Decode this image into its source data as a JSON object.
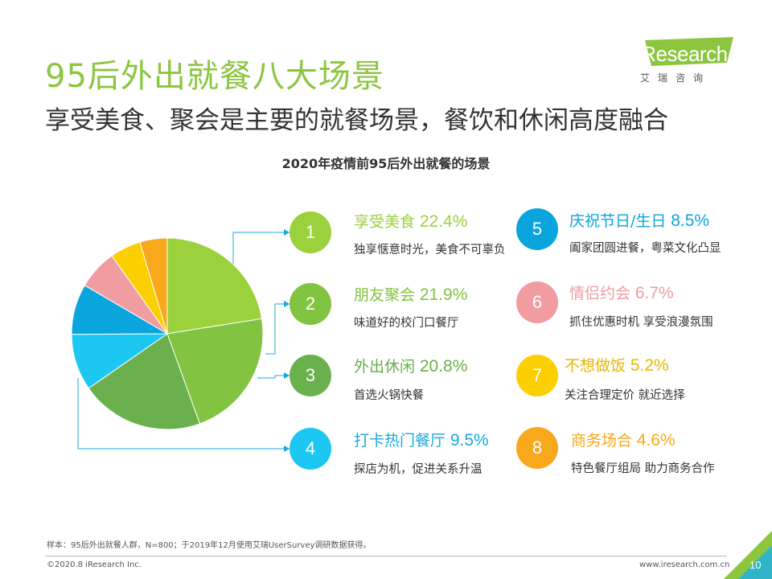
{
  "header": {
    "title": "95后外出就餐八大场景",
    "subtitle": "享受美食、聚会是主要的就餐场景，餐饮和休闲高度融合"
  },
  "logo": {
    "word": "iResearch",
    "cn": "艾瑞咨询"
  },
  "chart_data": {
    "type": "pie",
    "title": "2020年疫情前95后外出就餐的场景",
    "slices": [
      {
        "index": "1",
        "name": "享受美食",
        "value": 22.4,
        "value_label": "22.4%",
        "desc": "独享惬意时光，美食不可辜负",
        "color": "#9bd13c"
      },
      {
        "index": "2",
        "name": "朋友聚会",
        "value": 21.9,
        "value_label": "21.9%",
        "desc": "味道好的校门口餐厅",
        "color": "#82c341"
      },
      {
        "index": "3",
        "name": "外出休闲",
        "value": 20.8,
        "value_label": "20.8%",
        "desc": "首选火锅快餐",
        "color": "#6ab04c"
      },
      {
        "index": "4",
        "name": "打卡热门餐厅",
        "value": 9.5,
        "value_label": "9.5%",
        "desc": "探店为机，促进关系升温",
        "color": "#1cc7f1"
      },
      {
        "index": "5",
        "name": "庆祝节日/生日",
        "value": 8.5,
        "value_label": "8.5%",
        "desc": "阖家团圆进餐，粤菜文化凸显",
        "color": "#0aa5dd"
      },
      {
        "index": "6",
        "name": "情侣约会",
        "value": 6.7,
        "value_label": "6.7%",
        "desc": "抓住优惠时机 享受浪漫氛围",
        "color": "#f19ca0"
      },
      {
        "index": "7",
        "name": "不想做饭",
        "value": 5.2,
        "value_label": "5.2%",
        "desc": "关注合理定价 就近选择",
        "color": "#fcd000"
      },
      {
        "index": "8",
        "name": "商务场合",
        "value": 4.6,
        "value_label": "4.6%",
        "desc": "特色餐厅组局 助力商务合作",
        "color": "#f8a81b"
      }
    ]
  },
  "footer": {
    "note": "样本：95后外出就餐人群，N=800；于2019年12月使用艾瑞UserSurvey调研数据获得。",
    "copyright": "©2020.8 iResearch Inc.",
    "site": "www.iresearch.com.cn",
    "page": "10"
  }
}
